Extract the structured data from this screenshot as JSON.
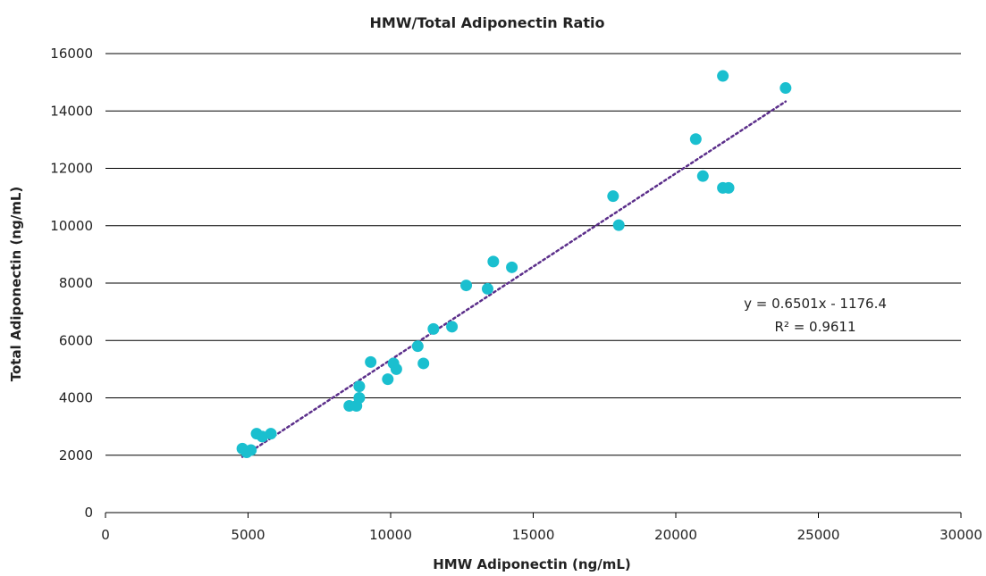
{
  "chart_data": {
    "type": "scatter",
    "title": "HMW/Total Adiponectin Ratio",
    "xlabel": "HMW Adiponectin (ng/mL)",
    "ylabel": "Total Adiponectin (ng/mL)",
    "xlim": [
      0,
      30000
    ],
    "ylim": [
      0,
      16000
    ],
    "x_ticks": [
      0,
      5000,
      10000,
      15000,
      20000,
      25000,
      30000
    ],
    "y_ticks": [
      0,
      2000,
      4000,
      6000,
      8000,
      10000,
      12000,
      14000,
      16000
    ],
    "grid": "horizontal",
    "point_color": "#1ABFCF",
    "trendline_color": "#5B2E8A",
    "series": [
      {
        "points": [
          {
            "x": 4800,
            "y": 2230
          },
          {
            "x": 4950,
            "y": 2100
          },
          {
            "x": 5100,
            "y": 2180
          },
          {
            "x": 5300,
            "y": 2750
          },
          {
            "x": 5500,
            "y": 2650
          },
          {
            "x": 5800,
            "y": 2750
          },
          {
            "x": 8550,
            "y": 3720
          },
          {
            "x": 8800,
            "y": 3720
          },
          {
            "x": 8900,
            "y": 4000
          },
          {
            "x": 8900,
            "y": 4400
          },
          {
            "x": 9300,
            "y": 5250
          },
          {
            "x": 9900,
            "y": 4650
          },
          {
            "x": 10100,
            "y": 5200
          },
          {
            "x": 10200,
            "y": 5000
          },
          {
            "x": 10950,
            "y": 5800
          },
          {
            "x": 11150,
            "y": 5200
          },
          {
            "x": 11500,
            "y": 6400
          },
          {
            "x": 12150,
            "y": 6480
          },
          {
            "x": 12650,
            "y": 7920
          },
          {
            "x": 13400,
            "y": 7800
          },
          {
            "x": 13600,
            "y": 8750
          },
          {
            "x": 14250,
            "y": 8550
          },
          {
            "x": 17800,
            "y": 11030
          },
          {
            "x": 18000,
            "y": 10020
          },
          {
            "x": 20700,
            "y": 13020
          },
          {
            "x": 20950,
            "y": 11730
          },
          {
            "x": 21650,
            "y": 11320
          },
          {
            "x": 21850,
            "y": 11320
          },
          {
            "x": 21650,
            "y": 15220
          },
          {
            "x": 23850,
            "y": 14800
          }
        ]
      }
    ],
    "trendline": {
      "type": "linear",
      "slope": 0.6501,
      "intercept": -1176.4,
      "x_range": [
        4800,
        23850
      ],
      "equation_text": "y = 0.6501x - 1176.4",
      "r2_text": "R² = 0.9611"
    }
  }
}
